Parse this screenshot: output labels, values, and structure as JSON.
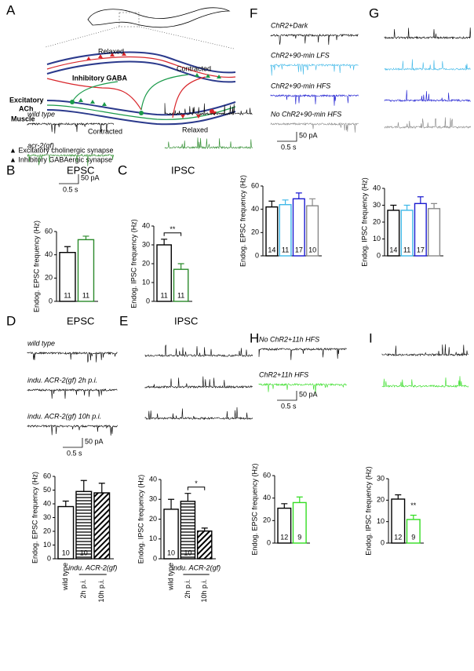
{
  "diagram": {
    "panel": "A",
    "labels": [
      {
        "text": "Relaxed",
        "color": "#000"
      },
      {
        "text": "Contracted",
        "color": "#000"
      },
      {
        "text": "Inhibitory GABA",
        "color": "#d8262b"
      },
      {
        "text": "Excitatory",
        "color": "#1a9a4a"
      },
      {
        "text": "ACh",
        "color": "#1a9a4a"
      },
      {
        "text": "Muscle",
        "color": "#2b3a8c"
      },
      {
        "text": "Contracted",
        "color": "#000"
      },
      {
        "text": "Relaxed",
        "color": "#000"
      },
      {
        "text": "▲ Excitatory cholinergic synapse",
        "color": "#1a9a4a"
      },
      {
        "text": "▲ Inhibitory GABAergic synapse",
        "color": "#d8262b"
      }
    ]
  },
  "chart_data": [
    {
      "type": "bar",
      "panel": "B",
      "title": "EPSC",
      "ylabel": "Endog. EPSC frequency (Hz)",
      "ylim": [
        0,
        60
      ],
      "yticks": [
        0,
        20,
        40,
        60
      ],
      "values": [
        42,
        53
      ],
      "errors": [
        5,
        3
      ],
      "n": [
        11,
        11
      ],
      "colors": [
        "#000000",
        "#2a8a2a"
      ],
      "trace_labels": [
        "wild type",
        "acr-2(gf)"
      ],
      "trace_colors": [
        "#000000",
        "#2a8a2a"
      ],
      "scale_bar": {
        "y": "50 pA",
        "x": "0.5 s"
      }
    },
    {
      "type": "bar",
      "panel": "C",
      "title": "IPSC",
      "ylabel": "Endog. IPSC frequency (Hz)",
      "ylim": [
        0,
        40
      ],
      "yticks": [
        0,
        10,
        20,
        30,
        40
      ],
      "values": [
        30,
        17
      ],
      "errors": [
        3,
        3
      ],
      "n": [
        11,
        11
      ],
      "colors": [
        "#000000",
        "#2a8a2a"
      ],
      "sig": {
        "text": "**",
        "between": [
          0,
          1
        ]
      },
      "trace_labels": [
        null,
        null
      ],
      "trace_colors": [
        "#000000",
        "#2a8a2a"
      ]
    },
    {
      "type": "bar",
      "panel": "D",
      "title": "EPSC",
      "ylabel": "Endog. EPSC frequency (Hz)",
      "ylim": [
        0,
        60
      ],
      "yticks": [
        0,
        10,
        20,
        30,
        40,
        50,
        60
      ],
      "values": [
        38,
        49,
        48
      ],
      "errors": [
        4,
        8,
        7
      ],
      "n": [
        10,
        10,
        null
      ],
      "colors": [
        "#000000",
        "#000000",
        "#000000"
      ],
      "patterns": [
        "none",
        "horizontal",
        "diagonal"
      ],
      "categories": [
        "wild type",
        "2h p.i.",
        "10h p.i."
      ],
      "group_label": "indu. ACR-2(gf)",
      "trace_labels": [
        "wild type",
        "indu. ACR-2(gf) 2h p.i.",
        "indu. ACR-2(gf) 10h p.i."
      ],
      "trace_colors": [
        "#000000",
        "#000000",
        "#000000"
      ],
      "scale_bar": {
        "y": "50 pA",
        "x": "0.5 s"
      }
    },
    {
      "type": "bar",
      "panel": "E",
      "title": "IPSC",
      "ylabel": "Endog. IPSC frequency (Hz)",
      "ylim": [
        0,
        40
      ],
      "yticks": [
        0,
        10,
        20,
        30,
        40
      ],
      "values": [
        25,
        29,
        14
      ],
      "errors": [
        5,
        4,
        1.5
      ],
      "n": [
        10,
        10,
        null
      ],
      "colors": [
        "#000000",
        "#000000",
        "#000000"
      ],
      "patterns": [
        "none",
        "horizontal",
        "diagonal"
      ],
      "categories": [
        "wild type",
        "2h p.i.",
        "10h p.i."
      ],
      "group_label": "indu. ACR-2(gf)",
      "sig": {
        "text": "*",
        "between": [
          1,
          2
        ]
      },
      "trace_labels": [
        null,
        null,
        null
      ],
      "trace_colors": [
        "#000000",
        "#000000",
        "#000000"
      ]
    },
    {
      "type": "bar",
      "panel": "F",
      "ylabel": "Endog. EPSC frequency (Hz)",
      "ylim": [
        0,
        60
      ],
      "yticks": [
        0,
        20,
        40,
        60
      ],
      "values": [
        42,
        44,
        49,
        43
      ],
      "errors": [
        5,
        4,
        5,
        6
      ],
      "n": [
        14,
        11,
        17,
        10
      ],
      "colors": [
        "#000000",
        "#3fb8e8",
        "#1a1ad0",
        "#888888"
      ],
      "trace_labels": [
        "ChR2+Dark",
        "ChR2+90-min LFS",
        "ChR2+90-min HFS",
        "No ChR2+90-min HFS"
      ],
      "trace_colors": [
        "#000000",
        "#3fb8e8",
        "#1a1ad0",
        "#888888"
      ],
      "scale_bar": {
        "y": "50 pA",
        "x": "0.5 s"
      }
    },
    {
      "type": "bar",
      "panel": "G",
      "ylabel": "Endog. IPSC frequency (Hz)",
      "ylim": [
        0,
        40
      ],
      "yticks": [
        0,
        10,
        20,
        30,
        40
      ],
      "values": [
        27,
        27,
        31,
        28
      ],
      "errors": [
        3,
        3,
        4,
        3
      ],
      "n": [
        14,
        11,
        17,
        null
      ],
      "colors": [
        "#000000",
        "#3fb8e8",
        "#1a1ad0",
        "#888888"
      ],
      "trace_labels": [
        null,
        null,
        null,
        null
      ],
      "trace_colors": [
        "#000000",
        "#3fb8e8",
        "#1a1ad0",
        "#888888"
      ]
    },
    {
      "type": "bar",
      "panel": "H",
      "ylabel": "Endog. EPSC frequency (Hz)",
      "ylim": [
        0,
        60
      ],
      "yticks": [
        0,
        20,
        40,
        60
      ],
      "values": [
        31,
        36
      ],
      "errors": [
        4,
        5
      ],
      "n": [
        12,
        9
      ],
      "colors": [
        "#000000",
        "#33dd22"
      ],
      "trace_labels": [
        "No ChR2+11h HFS",
        "ChR2+11h HFS"
      ],
      "trace_colors": [
        "#000000",
        "#33dd22"
      ],
      "scale_bar": {
        "y": "50 pA",
        "x": "0.5 s"
      }
    },
    {
      "type": "bar",
      "panel": "I",
      "ylabel": "Endog. IPSC frequency (Hz)",
      "ylim": [
        0,
        30
      ],
      "yticks": [
        0,
        10,
        20,
        30
      ],
      "values": [
        20.5,
        11
      ],
      "errors": [
        2,
        2
      ],
      "n": [
        12,
        9
      ],
      "colors": [
        "#000000",
        "#33dd22"
      ],
      "sig": {
        "text": "**",
        "between": [
          1,
          1
        ]
      },
      "trace_labels": [
        null,
        null
      ],
      "trace_colors": [
        "#000000",
        "#33dd22"
      ]
    }
  ]
}
